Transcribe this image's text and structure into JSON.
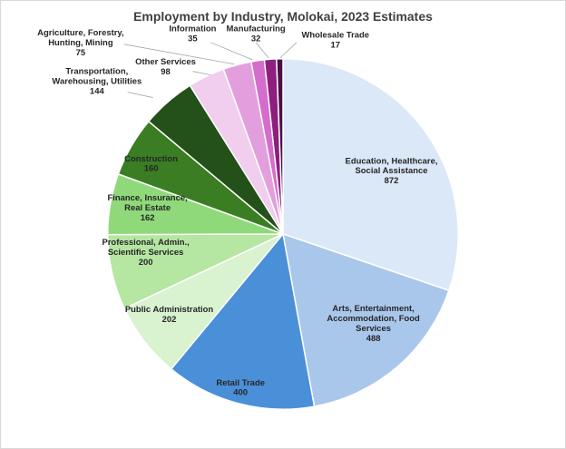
{
  "chart_data": {
    "type": "pie",
    "title": "Employment by Industry, Molokai, 2023 Estimates",
    "start_angle_deg": 0,
    "direction": "clockwise",
    "slices": [
      {
        "lines": [
          "Education, Healthcare,",
          "Social Assistance"
        ],
        "value_text": "872",
        "value": 872,
        "color": "#dbe8f7"
      },
      {
        "lines": [
          "Arts, Entertainment,",
          "Accommodation, Food",
          "Services"
        ],
        "value_text": "488",
        "value": 488,
        "color": "#a9c7eb"
      },
      {
        "lines": [
          "Retail Trade"
        ],
        "value_text": "400",
        "value": 400,
        "color": "#4a90d9"
      },
      {
        "lines": [
          "Public Administration"
        ],
        "value_text": "202",
        "value": 202,
        "color": "#d9f2d0"
      },
      {
        "lines": [
          "Professional, Admin.,",
          "Scientific Services"
        ],
        "value_text": "200",
        "value": 200,
        "color": "#b5e6a2"
      },
      {
        "lines": [
          "Finance, Insurance,",
          "Real Estate"
        ],
        "value_text": "162",
        "value": 162,
        "color": "#8fd97a"
      },
      {
        "lines": [
          "Construction"
        ],
        "value_text": "160",
        "value": 160,
        "color": "#3a7d23"
      },
      {
        "lines": [
          "Transportation,",
          "Warehousing, Utilities"
        ],
        "value_text": "144",
        "value": 144,
        "color": "#24501a"
      },
      {
        "lines": [
          "Other Services"
        ],
        "value_text": "98",
        "value": 98,
        "color": "#f1cdee"
      },
      {
        "lines": [
          "Agriculture, Forestry,",
          "Hunting, Mining"
        ],
        "value_text": "75",
        "value": 75,
        "color": "#e39fdd"
      },
      {
        "lines": [
          "Information"
        ],
        "value_text": "35",
        "value": 35,
        "color": "#d56dcc"
      },
      {
        "lines": [
          "Manufacturing"
        ],
        "value_text": "32",
        "value": 32,
        "color": "#8e1f7f"
      },
      {
        "lines": [
          "Wholesale Trade"
        ],
        "value_text": "17",
        "value": 17,
        "color": "#4a0f45"
      }
    ]
  }
}
